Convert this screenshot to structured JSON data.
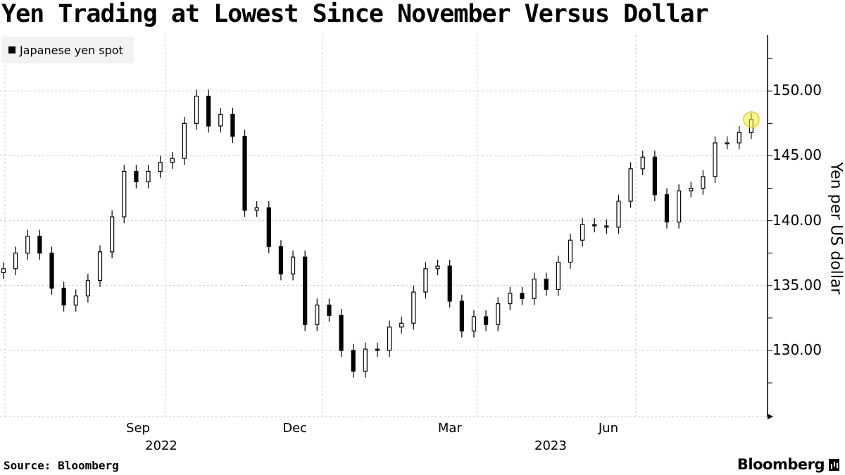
{
  "title": "Yen Trading at Lowest Since November Versus Dollar",
  "footer": {
    "source": "Source: Bloomberg",
    "brand": "Bloomberg"
  },
  "chart_data": {
    "type": "candlestick",
    "title": "Yen Trading at Lowest Since November Versus Dollar",
    "legend": {
      "entries": [
        "Japanese yen spot"
      ],
      "placement": "top-left"
    },
    "ylabel": "Yen per US dollar",
    "ylim": [
      124.9,
      154.3
    ],
    "yticks": [
      "150.00",
      "145.00",
      "140.00",
      "135.00",
      "130.00"
    ],
    "ytick_values": [
      150,
      145,
      140,
      135,
      130
    ],
    "y_axis_side": "right",
    "xlim": [
      "2022-05-30",
      "2023-08-14"
    ],
    "xticks": [
      {
        "label": "Sep",
        "date": "2022-09-01"
      },
      {
        "label": "Dec",
        "date": "2022-12-01"
      },
      {
        "label": "Mar",
        "date": "2023-03-01"
      },
      {
        "label": "Jun",
        "date": "2023-06-01"
      }
    ],
    "year_labels": [
      {
        "label": "2022",
        "date": "2022-09-01"
      },
      {
        "label": "2023",
        "date": "2023-04-15"
      }
    ],
    "grid": true,
    "highlight": {
      "last_point": true,
      "color": "#f5ec3a"
    },
    "series": [
      {
        "name": "Japanese yen spot",
        "frequency": "weekly (approx.)",
        "start_date": "2022-05-30",
        "close": [
          136.3,
          137.5,
          138.8,
          137.5,
          134.8,
          133.5,
          134.2,
          135.4,
          137.6,
          140.3,
          143.8,
          143.0,
          143.8,
          144.5,
          144.8,
          147.5,
          149.6,
          147.3,
          148.2,
          146.5,
          140.8,
          141.0,
          138.0,
          135.9,
          137.2,
          132.0,
          133.5,
          132.7,
          130.0,
          128.4,
          130.1,
          130.0,
          131.8,
          132.1,
          134.5,
          136.3,
          136.5,
          133.8,
          131.5,
          132.6,
          132.0,
          133.6,
          134.4,
          134.0,
          135.5,
          134.7,
          136.8,
          138.5,
          139.7,
          139.6,
          139.5,
          141.5,
          144.0,
          144.9,
          142.0,
          139.9,
          142.3,
          142.5,
          143.4,
          146.0,
          146.0,
          146.8,
          147.8
        ]
      }
    ]
  }
}
